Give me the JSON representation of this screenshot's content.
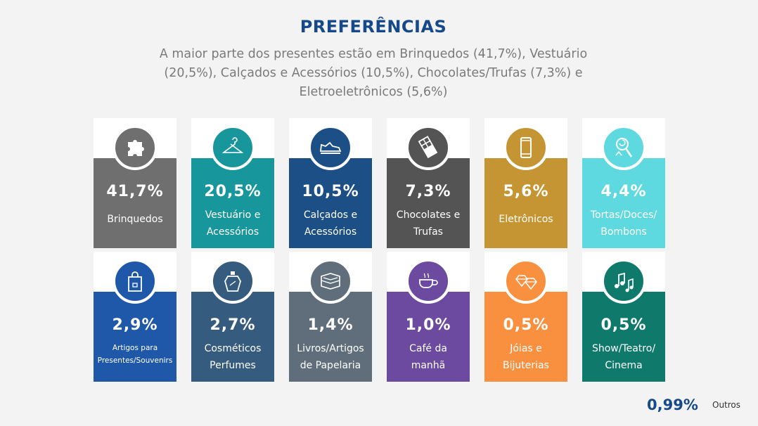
{
  "title": "PREFERÊNCIAS",
  "subtitle": "A maior parte dos presentes estão em Brinquedos (41,7%), Vestuário (20,5%), Calçados e Acessórios (10,5%), Chocolates/Trufas (7,3%) e Eletroeletrônicos (5,6%)",
  "others": {
    "value": "0,99%",
    "label": "Outros"
  },
  "chart_data": {
    "type": "table",
    "title": "PREFERÊNCIAS",
    "unit": "%",
    "categories": [
      "Brinquedos",
      "Vestuário e Acessórios",
      "Calçados e Acessórios",
      "Chocolates e Trufas",
      "Eletrônicos",
      "Tortas/Doces/ Bombons",
      "Artigos para Presentes/Souvenirs",
      "Cosméticos Perfumes",
      "Livros/Artigos de Papelaria",
      "Café da manhã",
      "Jóias e Bijuterias",
      "Show/Teatro/ Cinema",
      "Outros"
    ],
    "values": [
      41.7,
      20.5,
      10.5,
      7.3,
      5.6,
      4.4,
      2.9,
      2.7,
      1.4,
      1.0,
      0.5,
      0.5,
      0.99
    ]
  },
  "cards": [
    {
      "value": "41,7%",
      "line1": "Brinquedos",
      "line2": "",
      "color": "#6f6f6f",
      "icon": "puzzle-icon"
    },
    {
      "value": "20,5%",
      "line1": "Vestuário e",
      "line2": "Acessórios",
      "color": "#17979b",
      "icon": "hanger-icon"
    },
    {
      "value": "10,5%",
      "line1": "Calçados e",
      "line2": "Acessórios",
      "color": "#1b4f86",
      "icon": "sneaker-icon"
    },
    {
      "value": "7,3%",
      "line1": "Chocolates e",
      "line2": "Trufas",
      "color": "#545454",
      "icon": "chocolate-icon"
    },
    {
      "value": "5,6%",
      "line1": "Eletrônicos",
      "line2": "",
      "color": "#c69533",
      "icon": "phone-icon"
    },
    {
      "value": "4,4%",
      "line1": "Tortas/Doces/",
      "line2": "Bombons",
      "color": "#5fd9e0",
      "icon": "candy-icon"
    },
    {
      "value": "2,9%",
      "line1": "Artigos para",
      "line2": "Presentes/Souvenirs",
      "color": "#1f58a8",
      "icon": "shopping-bag-icon",
      "small": true
    },
    {
      "value": "2,7%",
      "line1": "Cosméticos",
      "line2": "Perfumes",
      "color": "#355b7e",
      "icon": "perfume-icon"
    },
    {
      "value": "1,4%",
      "line1": "Livros/Artigos",
      "line2": "de Papelaria",
      "color": "#5f6e7a",
      "icon": "books-icon"
    },
    {
      "value": "1,0%",
      "line1": "Café da",
      "line2": "manhã",
      "color": "#6b4aa0",
      "icon": "breakfast-icon"
    },
    {
      "value": "0,5%",
      "line1": "Jóias e",
      "line2": "Bijuterias",
      "color": "#f99040",
      "icon": "diamond-icon"
    },
    {
      "value": "0,5%",
      "line1": "Show/Teatro/",
      "line2": "Cinema",
      "color": "#0f7a6c",
      "icon": "music-notes-icon"
    }
  ]
}
